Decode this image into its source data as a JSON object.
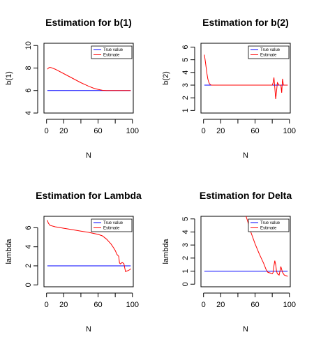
{
  "chart_data": [
    {
      "type": "line",
      "title": "Estimation for b(1)",
      "xlabel": "N",
      "ylabel": "b(1)",
      "xlim": [
        -3,
        101
      ],
      "ylim": [
        4,
        10.2
      ],
      "xticks": [
        0,
        20,
        40,
        60,
        80,
        100
      ],
      "xtick_labels": [
        "0",
        "20",
        "",
        "60",
        "",
        "100"
      ],
      "yticks": [
        4,
        6,
        8,
        10
      ],
      "legend": {
        "position": "top-right",
        "entries": [
          "True value",
          "Estimate"
        ]
      },
      "grid": false,
      "series": [
        {
          "name": "True value",
          "color": "#0000ff",
          "x": [
            1,
            98
          ],
          "y": [
            6,
            6
          ]
        },
        {
          "name": "Estimate",
          "color": "#ff0000",
          "x": [
            1,
            3,
            5,
            10,
            20,
            30,
            40,
            50,
            55,
            60,
            65,
            70,
            80,
            90,
            98
          ],
          "y": [
            7.9,
            8.05,
            8.05,
            7.9,
            7.5,
            7.1,
            6.7,
            6.35,
            6.2,
            6.1,
            6.02,
            6.0,
            6.0,
            6.0,
            6.0
          ]
        }
      ]
    },
    {
      "type": "line",
      "title": "Estimation for b(2)",
      "xlabel": "N",
      "ylabel": "b(2)",
      "xlim": [
        -3,
        101
      ],
      "ylim": [
        0.8,
        6.3
      ],
      "xticks": [
        0,
        20,
        40,
        60,
        80,
        100
      ],
      "xtick_labels": [
        "0",
        "20",
        "",
        "60",
        "",
        "100"
      ],
      "yticks": [
        1,
        2,
        3,
        4,
        5,
        6
      ],
      "legend": {
        "position": "top-right",
        "entries": [
          "True value",
          "Estimate"
        ]
      },
      "grid": false,
      "series": [
        {
          "name": "True value",
          "color": "#0000ff",
          "x": [
            1,
            98
          ],
          "y": [
            3,
            3
          ]
        },
        {
          "name": "Estimate",
          "color": "#ff0000",
          "x": [
            1,
            2,
            3,
            4,
            5,
            6,
            7,
            8,
            9,
            10,
            15,
            30,
            50,
            70,
            80,
            81,
            82,
            83,
            84,
            85,
            86,
            88,
            90,
            91,
            92,
            93,
            94,
            95,
            96,
            98
          ],
          "y": [
            5.4,
            4.9,
            4.4,
            3.9,
            3.5,
            3.25,
            3.1,
            3.05,
            3.0,
            3.0,
            3.0,
            3.0,
            3.0,
            3.0,
            3.0,
            3.2,
            3.6,
            2.8,
            1.9,
            2.5,
            3.2,
            3.0,
            3.0,
            2.4,
            3.5,
            3.0,
            3.0,
            3.0,
            3.0,
            3.0
          ]
        }
      ]
    },
    {
      "type": "line",
      "title": "Estimation for Lambda",
      "xlabel": "N",
      "ylabel": "lambda",
      "xlim": [
        -3,
        101
      ],
      "ylim": [
        -0.2,
        7.2
      ],
      "xticks": [
        0,
        20,
        40,
        60,
        80,
        100
      ],
      "xtick_labels": [
        "0",
        "20",
        "",
        "60",
        "",
        "100"
      ],
      "yticks": [
        0,
        2,
        4,
        6
      ],
      "legend": {
        "position": "top-right",
        "entries": [
          "True value",
          "Estimate"
        ]
      },
      "grid": false,
      "series": [
        {
          "name": "True value",
          "color": "#0000ff",
          "x": [
            1,
            98
          ],
          "y": [
            2,
            2
          ]
        },
        {
          "name": "Estimate",
          "color": "#ff0000",
          "x": [
            1,
            2,
            4,
            10,
            20,
            30,
            40,
            50,
            60,
            65,
            70,
            75,
            78,
            80,
            82,
            84,
            85,
            86,
            88,
            90,
            91,
            92,
            93,
            95,
            97,
            98
          ],
          "y": [
            6.8,
            6.5,
            6.25,
            6.1,
            5.95,
            5.8,
            5.65,
            5.5,
            5.3,
            5.15,
            4.8,
            4.3,
            3.9,
            3.6,
            3.2,
            3.0,
            2.3,
            2.2,
            2.35,
            2.25,
            1.8,
            1.4,
            1.45,
            1.5,
            1.6,
            1.7
          ]
        }
      ]
    },
    {
      "type": "line",
      "title": "Estimation for Delta",
      "xlabel": "N",
      "ylabel": "lambda",
      "xlim": [
        -3,
        101
      ],
      "ylim": [
        -0.2,
        5.2
      ],
      "xticks": [
        0,
        20,
        40,
        60,
        80,
        100
      ],
      "xtick_labels": [
        "0",
        "20",
        "",
        "60",
        "",
        "100"
      ],
      "yticks": [
        0,
        1,
        2,
        3,
        4,
        5
      ],
      "legend": {
        "position": "top-right",
        "entries": [
          "True value",
          "Estimate"
        ]
      },
      "grid": false,
      "series": [
        {
          "name": "True value",
          "color": "#0000ff",
          "x": [
            1,
            98
          ],
          "y": [
            1,
            1
          ]
        },
        {
          "name": "Estimate",
          "color": "#ff0000",
          "x": [
            49,
            51,
            55,
            60,
            65,
            70,
            73,
            75,
            78,
            80,
            81,
            82,
            83,
            84,
            85,
            86,
            88,
            89,
            90,
            92,
            94,
            96,
            98
          ],
          "y": [
            5.3,
            4.9,
            4.0,
            3.1,
            2.3,
            1.6,
            1.1,
            0.9,
            0.85,
            0.8,
            0.9,
            1.4,
            1.8,
            1.5,
            1.0,
            0.8,
            0.7,
            1.0,
            1.35,
            0.9,
            0.7,
            0.65,
            0.6
          ]
        }
      ]
    }
  ]
}
